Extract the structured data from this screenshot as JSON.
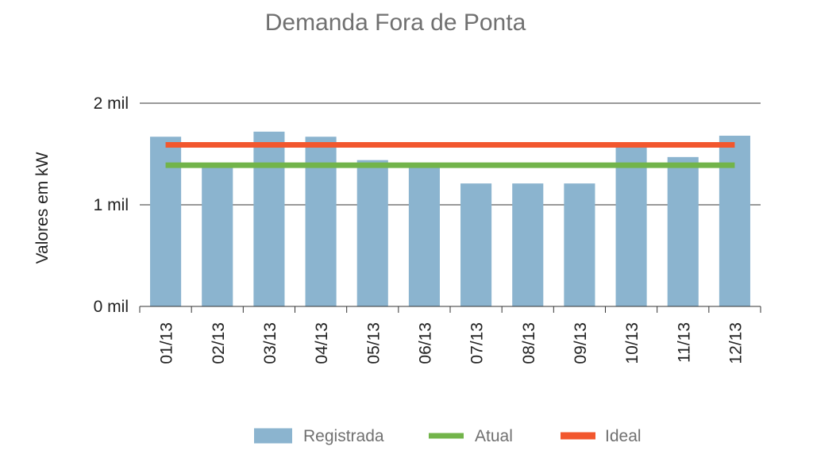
{
  "chart_data": {
    "type": "bar",
    "title": "Demanda Fora de Ponta",
    "ylabel": "Valores em kW",
    "xlabel": "",
    "ylim": [
      0,
      2000
    ],
    "yticks": [
      {
        "value": 0,
        "label": "0 mil"
      },
      {
        "value": 1000,
        "label": "1 mil"
      },
      {
        "value": 2000,
        "label": "2 mil"
      }
    ],
    "grid": true,
    "legend_position": "bottom",
    "categories": [
      "01/13",
      "02/13",
      "03/13",
      "04/13",
      "05/13",
      "06/13",
      "07/13",
      "08/13",
      "09/13",
      "10/13",
      "11/13",
      "12/13"
    ],
    "series": [
      {
        "name": "Registrada",
        "type": "bar",
        "color": "#8bb4cf",
        "values": [
          1670,
          1390,
          1720,
          1670,
          1440,
          1390,
          1210,
          1210,
          1210,
          1580,
          1470,
          1680
        ]
      },
      {
        "name": "Atual",
        "type": "line",
        "color": "#72b44a",
        "values": [
          1390,
          1390,
          1390,
          1390,
          1390,
          1390,
          1390,
          1390,
          1390,
          1390,
          1390,
          1390
        ]
      },
      {
        "name": "Ideal",
        "type": "line",
        "color": "#f2572e",
        "values": [
          1590,
          1590,
          1590,
          1590,
          1590,
          1590,
          1590,
          1590,
          1590,
          1590,
          1590,
          1590
        ]
      }
    ]
  }
}
